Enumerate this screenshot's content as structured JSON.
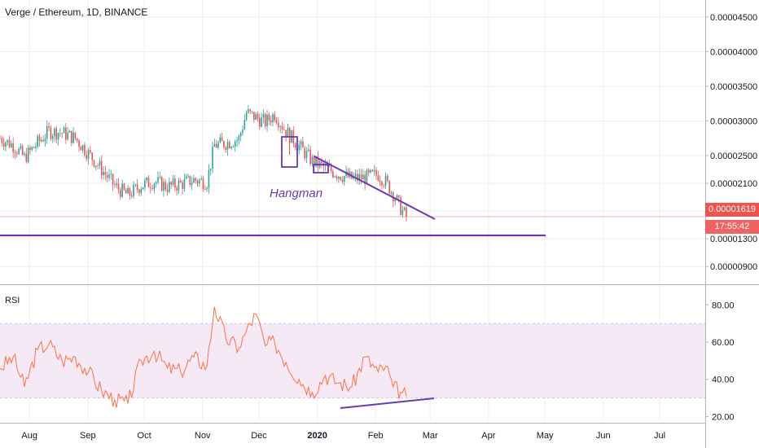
{
  "header": {
    "title": "Verge / Ethereum, 1D, BINANCE"
  },
  "rsi": {
    "label": "RSI"
  },
  "annotation": {
    "text": "Hangman"
  },
  "badges": {
    "last_price": "0.00001619",
    "countdown": "17:55:42"
  },
  "colors": {
    "up": "#26a69a",
    "down": "#ef5350",
    "drawing": "#673ab7",
    "rsi_line": "#ff7043",
    "rsi_band": "#f3e5f5",
    "grid": "#eeeeee",
    "axis_text": "#131722"
  },
  "chart_data": [
    {
      "type": "candlestick",
      "title": "Verge / Ethereum, 1D, BINANCE",
      "y_ticks": [
        "0.00004500",
        "0.00004000",
        "0.00003500",
        "0.00003000",
        "0.00002500",
        "0.00002100",
        "0.00001700",
        "0.00001300",
        "0.00000900"
      ],
      "x_ticks": [
        "Aug",
        "Sep",
        "Oct",
        "Nov",
        "Dec",
        "2020",
        "Feb",
        "Mar",
        "Apr",
        "May",
        "Jun",
        "Jul"
      ],
      "ylim": [
        7.5e-06,
        4.65e-05
      ],
      "close_trend": [
        {
          "x": "2019-07-25",
          "y": 2.75e-05
        },
        {
          "x": "2019-08-01",
          "y": 2.65e-05
        },
        {
          "x": "2019-08-07",
          "y": 2.47e-05
        },
        {
          "x": "2019-08-14",
          "y": 2.68e-05
        },
        {
          "x": "2019-08-20",
          "y": 2.85e-05
        },
        {
          "x": "2019-08-27",
          "y": 2.83e-05
        },
        {
          "x": "2019-09-03",
          "y": 2.75e-05
        },
        {
          "x": "2019-09-10",
          "y": 2.53e-05
        },
        {
          "x": "2019-09-17",
          "y": 2.3e-05
        },
        {
          "x": "2019-09-24",
          "y": 2.06e-05
        },
        {
          "x": "2019-10-01",
          "y": 1.93e-05
        },
        {
          "x": "2019-10-08",
          "y": 2.07e-05
        },
        {
          "x": "2019-10-15",
          "y": 2.13e-05
        },
        {
          "x": "2019-10-22",
          "y": 2.05e-05
        },
        {
          "x": "2019-10-29",
          "y": 2.09e-05
        },
        {
          "x": "2019-11-05",
          "y": 2.15e-05
        },
        {
          "x": "2019-11-12",
          "y": 2.12e-05
        },
        {
          "x": "2019-11-16",
          "y": 2.65e-05
        },
        {
          "x": "2019-11-22",
          "y": 2.68e-05
        },
        {
          "x": "2019-11-29",
          "y": 2.74e-05
        },
        {
          "x": "2019-12-03",
          "y": 3.12e-05
        },
        {
          "x": "2019-12-08",
          "y": 3.05e-05
        },
        {
          "x": "2019-12-13",
          "y": 2.98e-05
        },
        {
          "x": "2019-12-18",
          "y": 3.1e-05
        },
        {
          "x": "2019-12-24",
          "y": 2.85e-05
        },
        {
          "x": "2019-12-31",
          "y": 2.64e-05
        },
        {
          "x": "2020-01-07",
          "y": 2.42e-05
        },
        {
          "x": "2020-01-14",
          "y": 2.32e-05
        },
        {
          "x": "2020-01-21",
          "y": 2.23e-05
        },
        {
          "x": "2020-01-28",
          "y": 2.17e-05
        },
        {
          "x": "2020-02-04",
          "y": 2.18e-05
        },
        {
          "x": "2020-02-11",
          "y": 2.23e-05
        },
        {
          "x": "2020-02-15",
          "y": 2.12e-05
        },
        {
          "x": "2020-02-19",
          "y": 1.95e-05
        },
        {
          "x": "2020-02-23",
          "y": 1.74e-05
        },
        {
          "x": "2020-02-26",
          "y": 1.619e-05
        }
      ],
      "last_price": 1.619e-05
    },
    {
      "type": "line",
      "title": "RSI",
      "y_ticks": [
        "80.00",
        "60.00",
        "40.00",
        "20.00"
      ],
      "ylim": [
        18,
        88
      ],
      "band": [
        30,
        70
      ],
      "values": [
        {
          "x": "2019-07-25",
          "y": 46
        },
        {
          "x": "2019-08-01",
          "y": 52
        },
        {
          "x": "2019-08-07",
          "y": 36
        },
        {
          "x": "2019-08-14",
          "y": 56
        },
        {
          "x": "2019-08-20",
          "y": 59
        },
        {
          "x": "2019-08-27",
          "y": 50
        },
        {
          "x": "2019-09-03",
          "y": 52
        },
        {
          "x": "2019-09-10",
          "y": 44
        },
        {
          "x": "2019-09-17",
          "y": 34
        },
        {
          "x": "2019-09-24",
          "y": 29
        },
        {
          "x": "2019-10-01",
          "y": 27
        },
        {
          "x": "2019-10-08",
          "y": 50
        },
        {
          "x": "2019-10-15",
          "y": 55
        },
        {
          "x": "2019-10-22",
          "y": 46
        },
        {
          "x": "2019-10-29",
          "y": 44
        },
        {
          "x": "2019-11-05",
          "y": 52
        },
        {
          "x": "2019-11-12",
          "y": 47
        },
        {
          "x": "2019-11-16",
          "y": 79
        },
        {
          "x": "2019-11-22",
          "y": 62
        },
        {
          "x": "2019-11-29",
          "y": 57
        },
        {
          "x": "2019-12-03",
          "y": 66
        },
        {
          "x": "2019-12-08",
          "y": 75
        },
        {
          "x": "2019-12-13",
          "y": 58
        },
        {
          "x": "2019-12-18",
          "y": 60
        },
        {
          "x": "2019-12-24",
          "y": 49
        },
        {
          "x": "2019-12-31",
          "y": 40
        },
        {
          "x": "2020-01-07",
          "y": 33
        },
        {
          "x": "2020-01-14",
          "y": 42
        },
        {
          "x": "2020-01-21",
          "y": 38
        },
        {
          "x": "2020-01-28",
          "y": 36
        },
        {
          "x": "2020-02-04",
          "y": 52
        },
        {
          "x": "2020-02-11",
          "y": 44
        },
        {
          "x": "2020-02-15",
          "y": 47
        },
        {
          "x": "2020-02-19",
          "y": 36
        },
        {
          "x": "2020-02-23",
          "y": 33
        },
        {
          "x": "2020-02-26",
          "y": 31
        }
      ]
    }
  ]
}
